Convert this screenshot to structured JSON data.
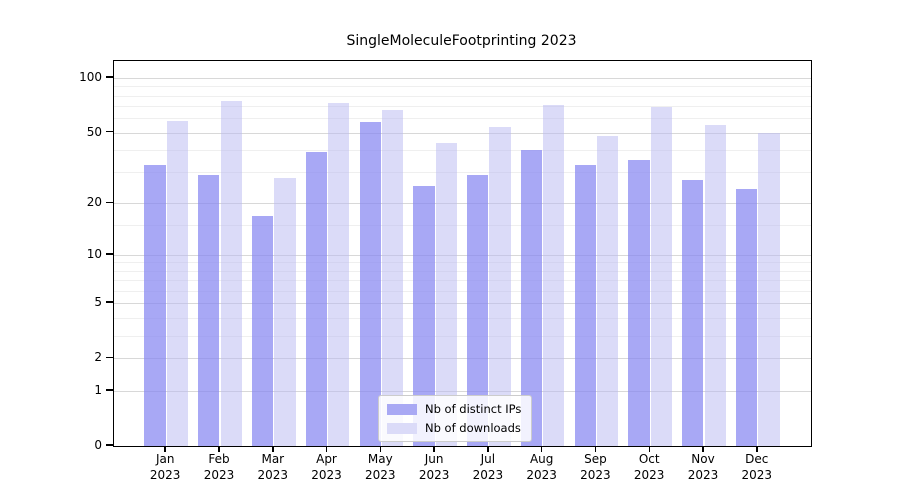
{
  "chart_data": {
    "type": "bar",
    "title": "SingleMoleculeFootprinting 2023",
    "categories": [
      "Jan",
      "Feb",
      "Mar",
      "Apr",
      "May",
      "Jun",
      "Jul",
      "Aug",
      "Sep",
      "Oct",
      "Nov",
      "Dec"
    ],
    "x_year_label": "2023",
    "series": [
      {
        "name": "Nb of distinct IPs",
        "color": "#a9a9f4",
        "fill": "rgba(134,134,241,0.72)",
        "values": [
          33,
          29,
          17,
          39,
          57,
          25,
          29,
          40,
          33,
          35,
          27,
          24
        ]
      },
      {
        "name": "Nb of downloads",
        "color": "#dbdbf8",
        "fill": "rgba(183,183,241,0.5)",
        "values": [
          58,
          75,
          28,
          73,
          67,
          44,
          54,
          71,
          48,
          69,
          55,
          50
        ]
      }
    ],
    "yscale": "log1p",
    "yticks": [
      0,
      1,
      2,
      5,
      10,
      20,
      50,
      100
    ],
    "yticks_minor": [
      3,
      4,
      6,
      7,
      8,
      9,
      15,
      30,
      40,
      60,
      70,
      80,
      90
    ],
    "ylim": [
      0,
      124
    ],
    "grid": "horizontal",
    "legend_position": "bottom-center"
  }
}
